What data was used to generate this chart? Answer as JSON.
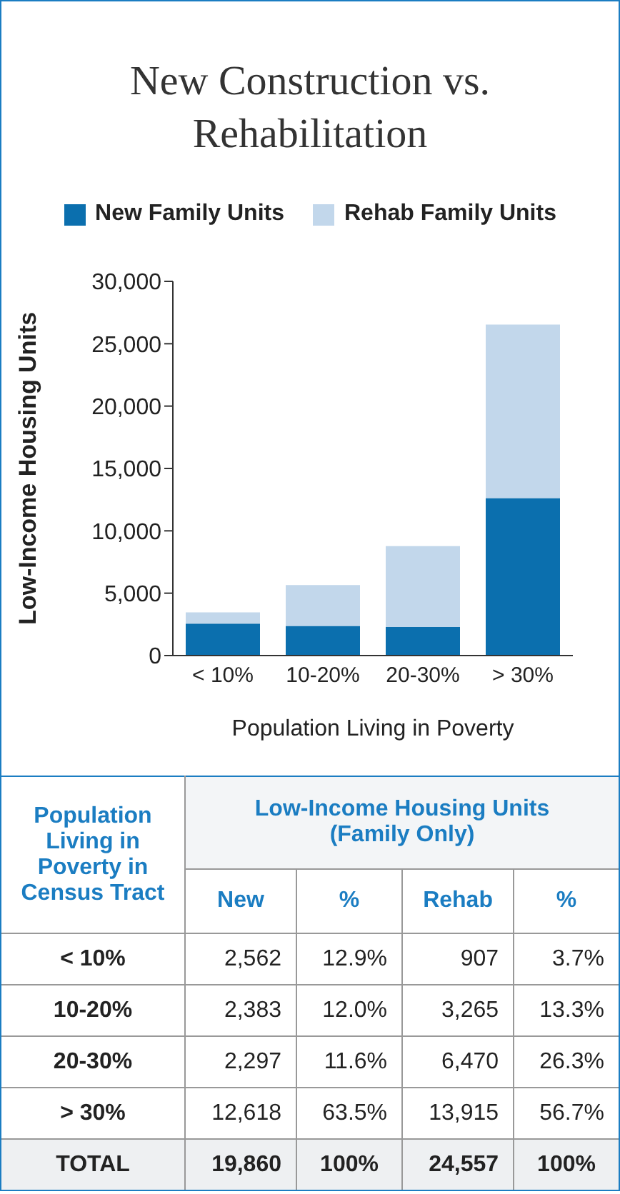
{
  "chart_data": {
    "type": "bar",
    "title": "New Construction vs. Rehabilitation",
    "xlabel": "Population Living in Poverty",
    "ylabel": "Low-Income Housing Units",
    "categories": [
      "< 10%",
      "10-20%",
      "20-30%",
      "> 30%"
    ],
    "series": [
      {
        "name": "New Family Units",
        "color": "#0b6fae",
        "values": [
          2562,
          2383,
          2297,
          12618
        ]
      },
      {
        "name": "Rehab Family Units",
        "color": "#c2d7eb",
        "values": [
          907,
          3265,
          6470,
          13915
        ]
      }
    ],
    "stacked": true,
    "legend": "top",
    "grid": false,
    "ylim": [
      0,
      30000
    ],
    "yticks": [
      {
        "value": 0,
        "label": "0"
      },
      {
        "value": 5000,
        "label": "5,000"
      },
      {
        "value": 10000,
        "label": "10,000"
      },
      {
        "value": 15000,
        "label": "15,000"
      },
      {
        "value": 20000,
        "label": "20,000"
      },
      {
        "value": 25000,
        "label": "25,000"
      },
      {
        "value": 30000,
        "label": "30,000"
      }
    ],
    "annotations": [
      "Population Living in Poverty in Census Tract",
      "Low-Income Housing Units (Family Only)",
      "New",
      "%",
      "Rehab",
      "%",
      "2,562",
      "12.9%",
      "907",
      "3.7%",
      "2,383",
      "12.0%",
      "3,265",
      "13.3%",
      "2,297",
      "11.6%",
      "6,470",
      "26.3%",
      "12,618",
      "63.5%",
      "13,915",
      "56.7%",
      "TOTAL",
      "19,860",
      "100%",
      "24,557",
      "100%"
    ]
  }
}
